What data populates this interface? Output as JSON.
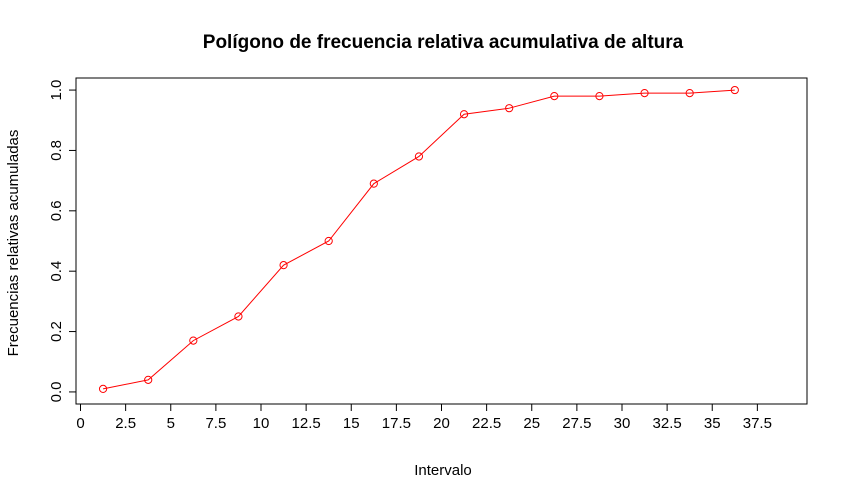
{
  "chart_data": {
    "type": "line",
    "title": "Polígono de frecuencia relativa acumulativa de altura",
    "xlabel": "Intervalo",
    "ylabel": "Frecuencias relativas acumuladas",
    "xlim": [
      -0.25,
      40.25
    ],
    "ylim": [
      -0.04,
      1.04
    ],
    "x_ticks": [
      0,
      2.5,
      5,
      7.5,
      10,
      12.5,
      15,
      17.5,
      20,
      22.5,
      25,
      27.5,
      30,
      32.5,
      35,
      37.5
    ],
    "x_tick_labels": [
      "0",
      "2.5",
      "5",
      "7.5",
      "10",
      "12.5",
      "15",
      "17.5",
      "20",
      "22.5",
      "25",
      "27.5",
      "30",
      "32.5",
      "35",
      "37.5"
    ],
    "y_ticks": [
      0,
      0.2,
      0.4,
      0.6,
      0.8,
      1.0
    ],
    "y_tick_labels": [
      "0.0",
      "0.2",
      "0.4",
      "0.6",
      "0.8",
      "1.0"
    ],
    "grid": false,
    "series": [
      {
        "color": "#ff0000",
        "marker": "open-circle",
        "x": [
          1.25,
          3.75,
          6.25,
          8.75,
          11.25,
          13.75,
          16.25,
          18.75,
          21.25,
          23.75,
          26.25,
          28.75,
          31.25,
          33.75,
          36.25
        ],
        "y": [
          0.01,
          0.04,
          0.17,
          0.25,
          0.42,
          0.5,
          0.69,
          0.78,
          0.92,
          0.94,
          0.98,
          0.98,
          0.99,
          0.99,
          1.0
        ]
      }
    ]
  }
}
